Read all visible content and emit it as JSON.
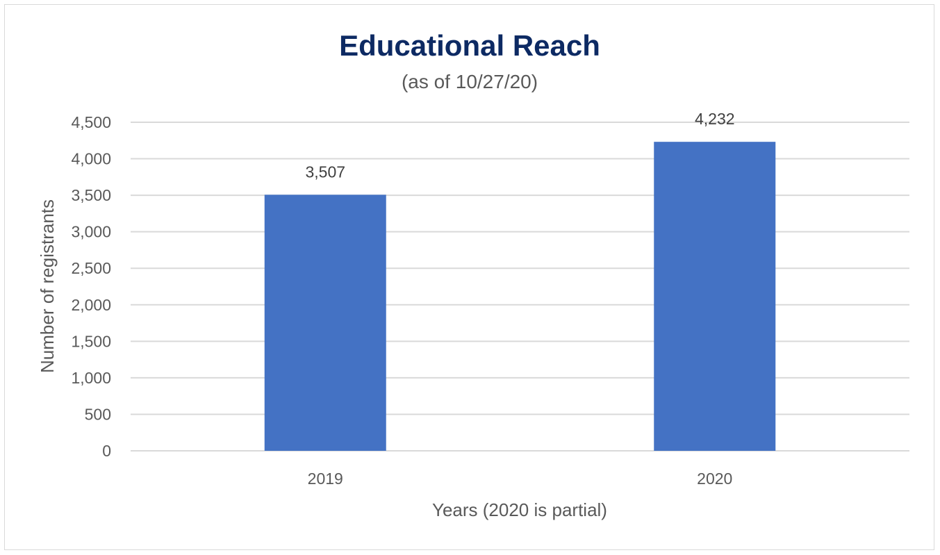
{
  "chart_data": {
    "type": "bar",
    "title": "Educational Reach",
    "subtitle": "(as of 10/27/20)",
    "xlabel": "Years (2020 is partial)",
    "ylabel": "Number of registrants",
    "categories": [
      "2019",
      "2020"
    ],
    "values": [
      3507,
      4232
    ],
    "value_labels": [
      "3,507",
      "4,232"
    ],
    "ylim": [
      0,
      4500
    ],
    "y_ticks": [
      0,
      500,
      1000,
      1500,
      2000,
      2500,
      3000,
      3500,
      4000,
      4500
    ],
    "y_tick_labels": [
      "0",
      "500",
      "1,000",
      "1,500",
      "2,000",
      "2,500",
      "3,000",
      "3,500",
      "4,000",
      "4,500"
    ],
    "grid": true,
    "legend": "none",
    "bar_color": "#4472c4",
    "title_color": "#0d2a63",
    "gridline_color": "#d9d9d9"
  }
}
